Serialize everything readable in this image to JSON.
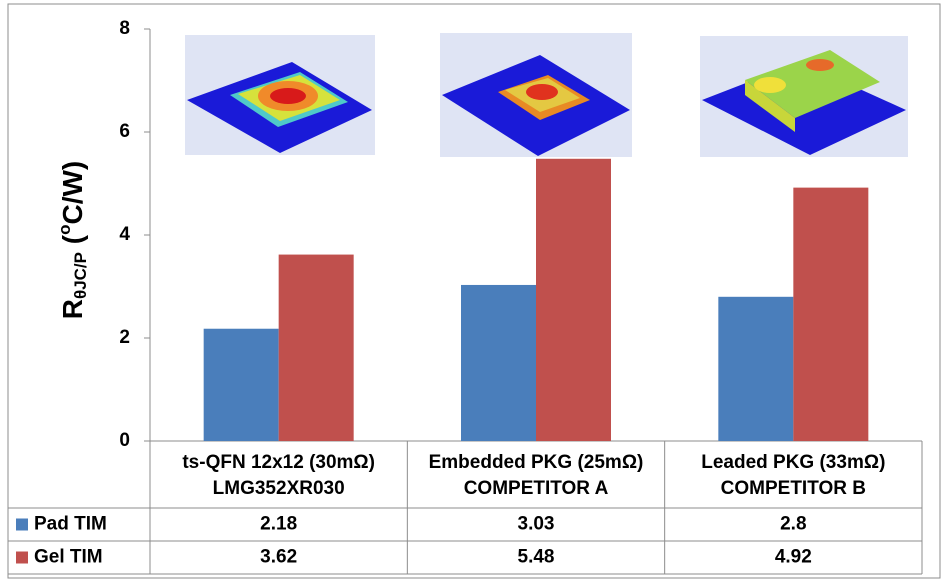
{
  "chart_data": {
    "type": "bar",
    "y_label": [
      "R",
      "θJC/P",
      " (",
      "o",
      "C/W)"
    ],
    "categories": [
      [
        "ts-QFN 12x12 (30mΩ)",
        "LMG352XR030"
      ],
      [
        "Embedded PKG (25mΩ)",
        "COMPETITOR A"
      ],
      [
        "Leaded PKG (33mΩ)",
        "COMPETITOR B"
      ]
    ],
    "series": [
      {
        "name": "Pad TIM",
        "color": "#4a7ebb",
        "values": [
          2.18,
          3.03,
          2.8
        ]
      },
      {
        "name": "Gel TIM",
        "color": "#c0504d",
        "values": [
          3.62,
          5.48,
          4.92
        ]
      }
    ],
    "ylim": [
      0,
      8
    ],
    "yticks": [
      0,
      2,
      4,
      6,
      8
    ],
    "grid": false
  }
}
